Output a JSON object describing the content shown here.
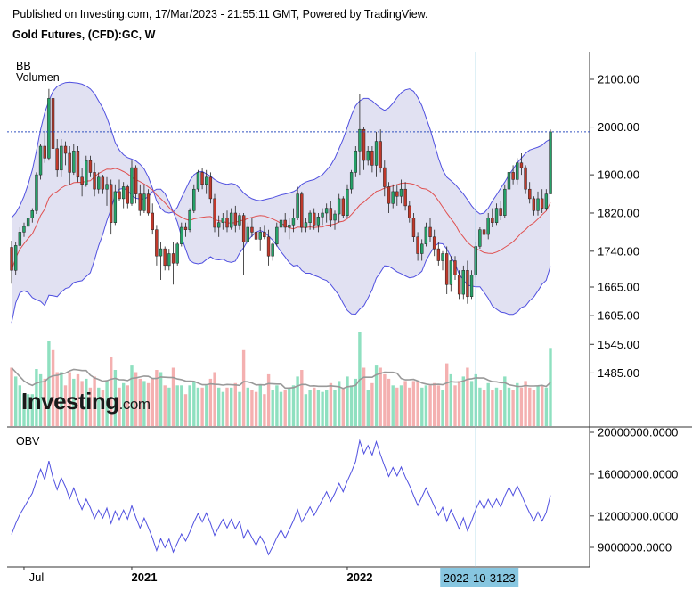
{
  "header": {
    "published": "Published on Investing.com, 17/Mar/2023 - 21:55:11 GMT, Powered by TradingView.",
    "instrument": "Gold Futures, (CFD):GC, W"
  },
  "indicators": {
    "bb": "BB",
    "volume": "Volumen",
    "obv": "OBV"
  },
  "brand": {
    "wordmark": "Investing",
    "suffix": ".com"
  },
  "crosshair_label": "2022-10-3123",
  "colors": {
    "up": "#26a269",
    "down": "#c0392b",
    "bb_band": "#5050e0",
    "bb_fill": "#dcdcf0",
    "bb_mid": "#e05050",
    "vol_up": "#8fe0c0",
    "vol_down": "#f4b0b0",
    "obv_line": "#5050e0",
    "crosshair": "#87c6e0",
    "dotted_price": "#3050c0"
  },
  "chart_data": [
    {
      "type": "candlestick",
      "name": "price",
      "y_ticks": [
        "2100.00",
        "2000.00",
        "1900.00",
        "1820.00",
        "1740.00",
        "1665.00",
        "1605.00",
        "1545.00",
        "1485.00"
      ],
      "x_ticks": [
        "Jul",
        "2021",
        "2022"
      ],
      "ylim": [
        1440,
        2160
      ],
      "candles": [
        [
          1748,
          1762,
          1672,
          1700
        ],
        [
          1700,
          1760,
          1690,
          1752
        ],
        [
          1752,
          1790,
          1740,
          1780
        ],
        [
          1780,
          1800,
          1770,
          1792
        ],
        [
          1792,
          1815,
          1785,
          1810
        ],
        [
          1810,
          1830,
          1800,
          1825
        ],
        [
          1825,
          1905,
          1818,
          1900
        ],
        [
          1900,
          1965,
          1890,
          1960
        ],
        [
          1960,
          1990,
          1925,
          1935
        ],
        [
          1935,
          2080,
          1930,
          2060
        ],
        [
          2060,
          2070,
          1940,
          1955
        ],
        [
          1955,
          1975,
          1895,
          1910
        ],
        [
          1910,
          1975,
          1895,
          1960
        ],
        [
          1960,
          1970,
          1920,
          1945
        ],
        [
          1945,
          1960,
          1880,
          1905
        ],
        [
          1905,
          1965,
          1900,
          1950
        ],
        [
          1950,
          1960,
          1885,
          1895
        ],
        [
          1895,
          1915,
          1855,
          1880
        ],
        [
          1880,
          1940,
          1875,
          1930
        ],
        [
          1930,
          1940,
          1895,
          1905
        ],
        [
          1905,
          1925,
          1855,
          1870
        ],
        [
          1870,
          1905,
          1860,
          1895
        ],
        [
          1895,
          1900,
          1860,
          1870
        ],
        [
          1870,
          1895,
          1835,
          1880
        ],
        [
          1880,
          1890,
          1775,
          1800
        ],
        [
          1800,
          1880,
          1795,
          1865
        ],
        [
          1865,
          1890,
          1845,
          1850
        ],
        [
          1850,
          1885,
          1830,
          1875
        ],
        [
          1875,
          1880,
          1830,
          1840
        ],
        [
          1840,
          1930,
          1835,
          1915
        ],
        [
          1915,
          1920,
          1840,
          1860
        ],
        [
          1860,
          1880,
          1815,
          1825
        ],
        [
          1825,
          1880,
          1820,
          1860
        ],
        [
          1860,
          1870,
          1815,
          1820
        ],
        [
          1820,
          1840,
          1775,
          1785
        ],
        [
          1785,
          1795,
          1710,
          1730
        ],
        [
          1730,
          1760,
          1680,
          1745
        ],
        [
          1745,
          1750,
          1700,
          1710
        ],
        [
          1710,
          1745,
          1700,
          1735
        ],
        [
          1735,
          1760,
          1670,
          1715
        ],
        [
          1715,
          1760,
          1710,
          1755
        ],
        [
          1755,
          1800,
          1750,
          1790
        ],
        [
          1790,
          1800,
          1770,
          1785
        ],
        [
          1785,
          1830,
          1780,
          1825
        ],
        [
          1825,
          1880,
          1820,
          1870
        ],
        [
          1870,
          1910,
          1865,
          1905
        ],
        [
          1905,
          1915,
          1870,
          1880
        ],
        [
          1880,
          1910,
          1860,
          1895
        ],
        [
          1895,
          1905,
          1840,
          1850
        ],
        [
          1850,
          1860,
          1780,
          1790
        ],
        [
          1790,
          1815,
          1770,
          1800
        ],
        [
          1800,
          1820,
          1785,
          1810
        ],
        [
          1810,
          1825,
          1780,
          1790
        ],
        [
          1790,
          1830,
          1785,
          1820
        ],
        [
          1820,
          1835,
          1780,
          1795
        ],
        [
          1795,
          1820,
          1785,
          1815
        ],
        [
          1815,
          1820,
          1690,
          1760
        ],
        [
          1760,
          1800,
          1755,
          1790
        ],
        [
          1790,
          1810,
          1770,
          1780
        ],
        [
          1780,
          1795,
          1760,
          1765
        ],
        [
          1765,
          1790,
          1740,
          1780
        ],
        [
          1780,
          1795,
          1765,
          1770
        ],
        [
          1770,
          1785,
          1710,
          1730
        ],
        [
          1730,
          1760,
          1720,
          1755
        ],
        [
          1755,
          1800,
          1750,
          1790
        ],
        [
          1790,
          1815,
          1780,
          1805
        ],
        [
          1805,
          1820,
          1780,
          1790
        ],
        [
          1790,
          1810,
          1765,
          1795
        ],
        [
          1795,
          1830,
          1780,
          1810
        ],
        [
          1810,
          1875,
          1805,
          1860
        ],
        [
          1860,
          1865,
          1780,
          1790
        ],
        [
          1790,
          1810,
          1780,
          1800
        ],
        [
          1800,
          1825,
          1785,
          1820
        ],
        [
          1820,
          1830,
          1785,
          1795
        ],
        [
          1795,
          1820,
          1780,
          1812
        ],
        [
          1812,
          1830,
          1795,
          1820
        ],
        [
          1820,
          1840,
          1800,
          1830
        ],
        [
          1830,
          1845,
          1790,
          1805
        ],
        [
          1805,
          1825,
          1785,
          1818
        ],
        [
          1818,
          1860,
          1800,
          1850
        ],
        [
          1850,
          1855,
          1810,
          1815
        ],
        [
          1815,
          1880,
          1810,
          1870
        ],
        [
          1870,
          1910,
          1860,
          1905
        ],
        [
          1905,
          1960,
          1895,
          1950
        ],
        [
          1950,
          2070,
          1900,
          1995
        ],
        [
          1995,
          2000,
          1910,
          1930
        ],
        [
          1930,
          1960,
          1920,
          1950
        ],
        [
          1950,
          1960,
          1905,
          1920
        ],
        [
          1920,
          1990,
          1895,
          1970
        ],
        [
          1970,
          1995,
          1905,
          1915
        ],
        [
          1915,
          1930,
          1855,
          1875
        ],
        [
          1875,
          1885,
          1820,
          1840
        ],
        [
          1840,
          1880,
          1830,
          1865
        ],
        [
          1865,
          1880,
          1835,
          1855
        ],
        [
          1855,
          1890,
          1840,
          1870
        ],
        [
          1870,
          1885,
          1825,
          1835
        ],
        [
          1835,
          1845,
          1800,
          1810
        ],
        [
          1810,
          1820,
          1760,
          1770
        ],
        [
          1770,
          1780,
          1720,
          1735
        ],
        [
          1735,
          1765,
          1720,
          1755
        ],
        [
          1755,
          1800,
          1750,
          1790
        ],
        [
          1790,
          1810,
          1760,
          1770
        ],
        [
          1770,
          1785,
          1730,
          1745
        ],
        [
          1745,
          1760,
          1710,
          1720
        ],
        [
          1720,
          1740,
          1700,
          1735
        ],
        [
          1735,
          1750,
          1650,
          1670
        ],
        [
          1670,
          1730,
          1655,
          1720
        ],
        [
          1720,
          1730,
          1680,
          1690
        ],
        [
          1690,
          1700,
          1640,
          1650
        ],
        [
          1650,
          1710,
          1640,
          1700
        ],
        [
          1700,
          1720,
          1630,
          1645
        ],
        [
          1645,
          1700,
          1640,
          1690
        ],
        [
          1690,
          1760,
          1685,
          1750
        ],
        [
          1750,
          1790,
          1745,
          1785
        ],
        [
          1785,
          1800,
          1760,
          1775
        ],
        [
          1775,
          1820,
          1765,
          1810
        ],
        [
          1810,
          1830,
          1790,
          1800
        ],
        [
          1800,
          1840,
          1795,
          1830
        ],
        [
          1830,
          1845,
          1805,
          1815
        ],
        [
          1815,
          1880,
          1810,
          1870
        ],
        [
          1870,
          1910,
          1865,
          1905
        ],
        [
          1905,
          1920,
          1880,
          1890
        ],
        [
          1890,
          1935,
          1880,
          1925
        ],
        [
          1925,
          1945,
          1900,
          1915
        ],
        [
          1915,
          1920,
          1860,
          1870
        ],
        [
          1870,
          1885,
          1840,
          1850
        ],
        [
          1850,
          1855,
          1815,
          1825
        ],
        [
          1825,
          1865,
          1815,
          1850
        ],
        [
          1850,
          1870,
          1820,
          1830
        ],
        [
          1830,
          1870,
          1825,
          1860
        ],
        [
          1860,
          1995,
          1860,
          1990
        ]
      ],
      "bb_upper": [
        1810,
        1820,
        1835,
        1855,
        1880,
        1910,
        1950,
        1995,
        2030,
        2055,
        2075,
        2085,
        2090,
        2093,
        2094,
        2093,
        2092,
        2090,
        2086,
        2080,
        2070,
        2055,
        2040,
        2020,
        1995,
        1968,
        1952,
        1942,
        1936,
        1933,
        1929,
        1922,
        1912,
        1895,
        1872,
        1845,
        1830,
        1822,
        1820,
        1822,
        1832,
        1852,
        1870,
        1888,
        1900,
        1906,
        1907,
        1902,
        1897,
        1890,
        1885,
        1882,
        1880,
        1882,
        1880,
        1872,
        1862,
        1855,
        1850,
        1847,
        1846,
        1848,
        1850,
        1852,
        1855,
        1858,
        1860,
        1862,
        1865,
        1870,
        1880,
        1885,
        1888,
        1890,
        1895,
        1900,
        1910,
        1920,
        1935,
        1955,
        1975,
        2000,
        2025,
        2045,
        2055,
        2060,
        2060,
        2055,
        2047,
        2040,
        2035,
        2040,
        2050,
        2062,
        2072,
        2078,
        2080,
        2075,
        2062,
        2045,
        2020,
        1995,
        1965,
        1935,
        1910,
        1895,
        1888,
        1880,
        1870,
        1860,
        1848,
        1835,
        1825,
        1818,
        1820,
        1830,
        1845,
        1858,
        1872,
        1885,
        1900,
        1912,
        1925,
        1935,
        1945,
        1952,
        1955,
        1958,
        1962,
        1970,
        1975
      ]
    },
    {
      "type": "bar",
      "name": "volume",
      "ylim": [
        0,
        1
      ]
    },
    {
      "type": "line",
      "name": "OBV",
      "y_ticks": [
        "20000000.0000",
        "16000000.0000",
        "12000000.0000",
        "9000000.0000"
      ],
      "ylim": [
        7000000,
        20500000
      ]
    }
  ]
}
